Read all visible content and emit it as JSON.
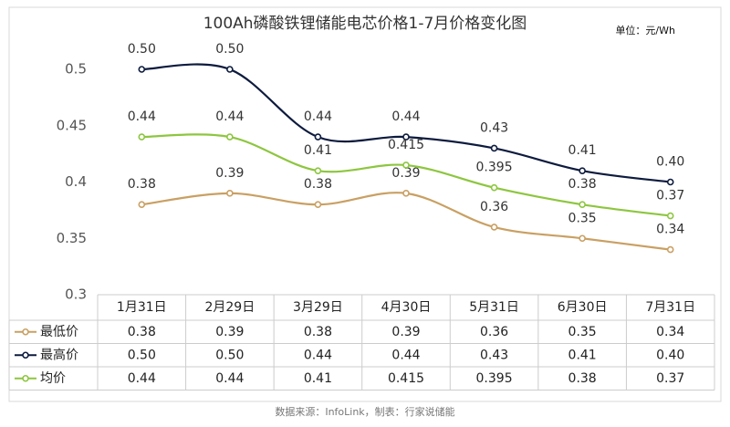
{
  "chart_data": {
    "type": "line",
    "title": "100Ah磷酸铁锂储能电芯价格1-7月价格变化图",
    "unit": "单位：元/Wh",
    "source": "数据来源：InfoLink，制表：行家说储能",
    "categories": [
      "1月31日",
      "2月29日",
      "3月29日",
      "4月30日",
      "5月31日",
      "6月30日",
      "7月31日"
    ],
    "series": [
      {
        "name": "最低价",
        "color": "#c9a063",
        "values": [
          0.38,
          0.39,
          0.38,
          0.39,
          0.36,
          0.35,
          0.34
        ],
        "value_labels": [
          "0.38",
          "0.39",
          "0.38",
          "0.39",
          "0.36",
          "0.35",
          "0.34"
        ]
      },
      {
        "name": "最高价",
        "color": "#0d1b3e",
        "values": [
          0.5,
          0.5,
          0.44,
          0.44,
          0.43,
          0.41,
          0.4
        ],
        "value_labels": [
          "0.50",
          "0.50",
          "0.44",
          "0.44",
          "0.43",
          "0.41",
          "0.40"
        ]
      },
      {
        "name": "均价",
        "color": "#8dc63f",
        "values": [
          0.44,
          0.44,
          0.41,
          0.415,
          0.395,
          0.38,
          0.37
        ],
        "value_labels": [
          "0.44",
          "0.44",
          "0.41",
          "0.415",
          "0.395",
          "0.38",
          "0.37"
        ]
      }
    ],
    "ylim": [
      0.3,
      0.5
    ],
    "yticks": [
      0.3,
      0.35,
      0.4,
      0.45,
      0.5
    ],
    "grid": false
  }
}
